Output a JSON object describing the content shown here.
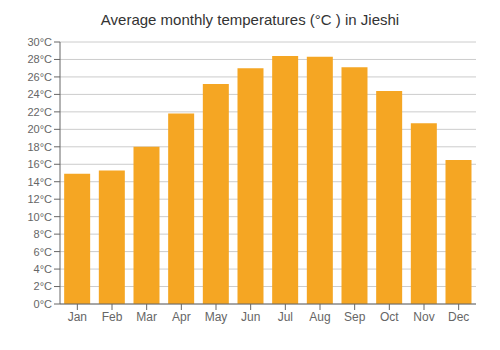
{
  "chart_data": {
    "type": "bar",
    "title": "Average monthly temperatures (°C ) in Jieshi",
    "categories": [
      "Jan",
      "Feb",
      "Mar",
      "Apr",
      "May",
      "Jun",
      "Jul",
      "Aug",
      "Sep",
      "Oct",
      "Nov",
      "Dec"
    ],
    "values": [
      14.9,
      15.3,
      18.0,
      21.8,
      25.2,
      27.0,
      28.4,
      28.3,
      27.1,
      24.4,
      20.7,
      16.5
    ],
    "color": "#F5A623",
    "ylim": [
      0,
      30
    ],
    "yticks": [
      {
        "value": 0,
        "label": "0°C"
      },
      {
        "value": 2,
        "label": "2°C"
      },
      {
        "value": 4,
        "label": "4°C"
      },
      {
        "value": 6,
        "label": "6°C"
      },
      {
        "value": 8,
        "label": "8°C"
      },
      {
        "value": 10,
        "label": "10°C"
      },
      {
        "value": 12,
        "label": "12°C"
      },
      {
        "value": 14,
        "label": "14°C"
      },
      {
        "value": 16,
        "label": "16°C"
      },
      {
        "value": 18,
        "label": "18°C"
      },
      {
        "value": 20,
        "label": "20°C"
      },
      {
        "value": 22,
        "label": "22°C"
      },
      {
        "value": 24,
        "label": "24°C"
      },
      {
        "value": 26,
        "label": "26°C"
      },
      {
        "value": 28,
        "label": "28°C"
      },
      {
        "value": 30,
        "label": "30°C"
      }
    ],
    "grid": true
  }
}
